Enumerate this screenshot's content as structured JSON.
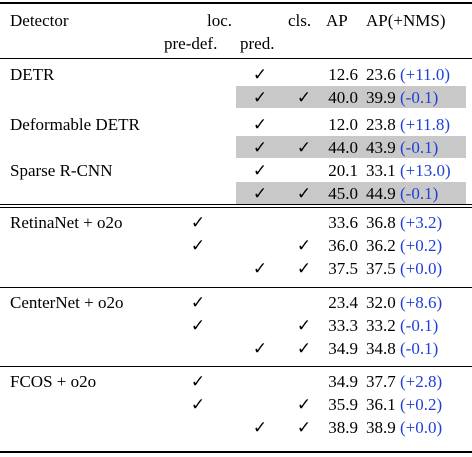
{
  "header": {
    "detector": "Detector",
    "loc": "loc.",
    "pre_def": "pre-def.",
    "pred": "pred.",
    "cls": "cls.",
    "ap": "AP",
    "ap_nms": "AP(+NMS)"
  },
  "check_glyph": "✓",
  "groups": [
    {
      "name": "DETR",
      "rows": [
        {
          "pre_def": false,
          "pred": true,
          "cls": false,
          "ap": "12.6",
          "ap_nms": "23.6",
          "delta": "(+11.0)",
          "shaded": false
        },
        {
          "pre_def": false,
          "pred": true,
          "cls": true,
          "ap": "40.0",
          "ap_nms": "39.9",
          "delta": "(-0.1)",
          "shaded": true
        }
      ]
    },
    {
      "name": "Deformable DETR",
      "rows": [
        {
          "pre_def": false,
          "pred": true,
          "cls": false,
          "ap": "12.0",
          "ap_nms": "23.8",
          "delta": "(+11.8)",
          "shaded": false
        },
        {
          "pre_def": false,
          "pred": true,
          "cls": true,
          "ap": "44.0",
          "ap_nms": "43.9",
          "delta": "(-0.1)",
          "shaded": true
        }
      ]
    },
    {
      "name": "Sparse R-CNN",
      "rows": [
        {
          "pre_def": false,
          "pred": true,
          "cls": false,
          "ap": "20.1",
          "ap_nms": "33.1",
          "delta": "(+13.0)",
          "shaded": false
        },
        {
          "pre_def": false,
          "pred": true,
          "cls": true,
          "ap": "45.0",
          "ap_nms": "44.9",
          "delta": "(-0.1)",
          "shaded": true
        }
      ]
    },
    {
      "name": "RetinaNet + o2o",
      "rows": [
        {
          "pre_def": true,
          "pred": false,
          "cls": false,
          "ap": "33.6",
          "ap_nms": "36.8",
          "delta": "(+3.2)",
          "shaded": false
        },
        {
          "pre_def": true,
          "pred": false,
          "cls": true,
          "ap": "36.0",
          "ap_nms": "36.2",
          "delta": "(+0.2)",
          "shaded": false
        },
        {
          "pre_def": false,
          "pred": true,
          "cls": true,
          "ap": "37.5",
          "ap_nms": "37.5",
          "delta": "(+0.0)",
          "shaded": false
        }
      ]
    },
    {
      "name": "CenterNet + o2o",
      "rows": [
        {
          "pre_def": true,
          "pred": false,
          "cls": false,
          "ap": "23.4",
          "ap_nms": "32.0",
          "delta": "(+8.6)",
          "shaded": false
        },
        {
          "pre_def": true,
          "pred": false,
          "cls": true,
          "ap": "33.3",
          "ap_nms": "33.2",
          "delta": "(-0.1)",
          "shaded": false
        },
        {
          "pre_def": false,
          "pred": true,
          "cls": true,
          "ap": "34.9",
          "ap_nms": "34.8",
          "delta": "(-0.1)",
          "shaded": false
        }
      ]
    },
    {
      "name": "FCOS + o2o",
      "rows": [
        {
          "pre_def": true,
          "pred": false,
          "cls": false,
          "ap": "34.9",
          "ap_nms": "37.7",
          "delta": "(+2.8)",
          "shaded": false
        },
        {
          "pre_def": true,
          "pred": false,
          "cls": true,
          "ap": "35.9",
          "ap_nms": "36.1",
          "delta": "(+0.2)",
          "shaded": false
        },
        {
          "pre_def": false,
          "pred": true,
          "cls": true,
          "ap": "38.9",
          "ap_nms": "38.9",
          "delta": "(+0.0)",
          "shaded": false
        }
      ]
    }
  ],
  "colors": {
    "delta": "#1f3fd6",
    "shade": "#c8c8c8"
  }
}
